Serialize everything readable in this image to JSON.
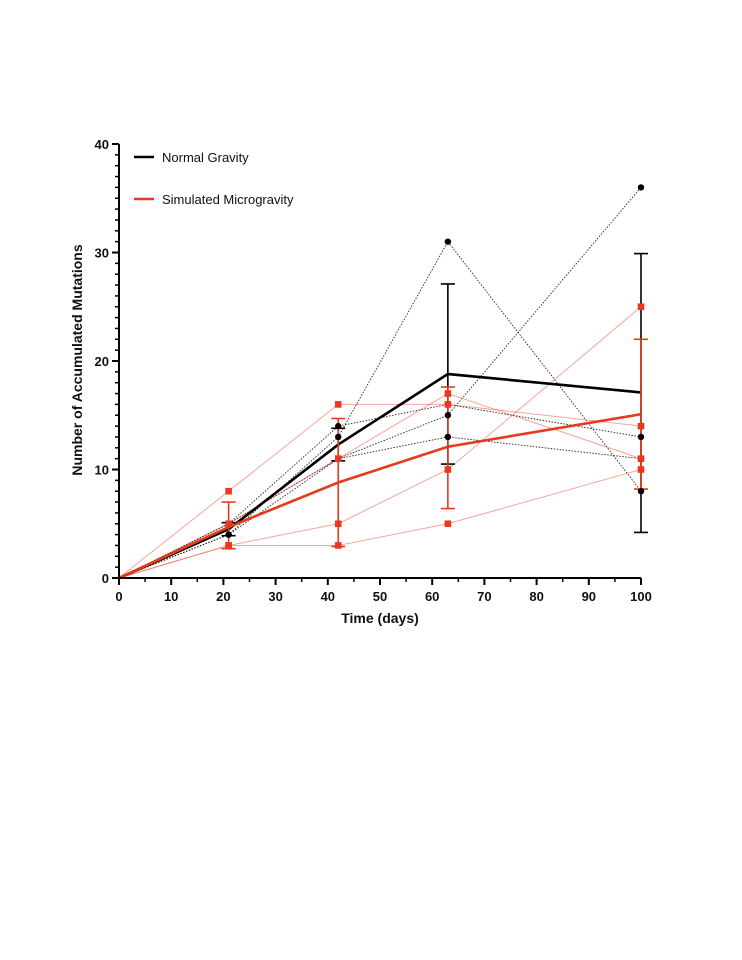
{
  "chart_data": {
    "type": "line",
    "title": "",
    "xlabel": "Time (days)",
    "ylabel": "Number of Accumulated Mutations",
    "xlim": [
      0,
      100
    ],
    "ylim": [
      0,
      40
    ],
    "x_ticks": [
      0,
      10,
      20,
      30,
      40,
      50,
      60,
      70,
      80,
      90,
      100
    ],
    "y_ticks": [
      0,
      10,
      20,
      30,
      40
    ],
    "x_tick_labels": [
      "0",
      "10",
      "20",
      "30",
      "40",
      "50",
      "60",
      "70",
      "80",
      "90",
      "100"
    ],
    "y_tick_labels": [
      "0",
      "10",
      "20",
      "30",
      "40"
    ],
    "legend": {
      "position": "top-left",
      "entries": [
        "Normal Gravity",
        "Simulated Microgravity"
      ]
    },
    "series": [
      {
        "name": "Normal Gravity",
        "color": "#000000",
        "marker": "circle",
        "x": [
          0,
          21,
          42,
          63,
          100
        ],
        "mean": [
          0,
          4.5,
          12.3,
          18.8,
          17.1
        ],
        "error_low": [
          0,
          3.9,
          10.8,
          10.5,
          4.2
        ],
        "error_high": [
          0,
          5.1,
          13.8,
          27.1,
          29.9
        ],
        "replicates": [
          [
            0,
            4,
            13,
            31,
            8
          ],
          [
            0,
            5,
            14,
            16,
            13
          ],
          [
            0,
            4,
            11,
            15,
            36
          ],
          [
            0,
            5,
            11,
            13,
            11
          ]
        ]
      },
      {
        "name": "Simulated Microgravity",
        "color": "#e8391d",
        "marker": "square",
        "x": [
          0,
          21,
          42,
          63,
          100
        ],
        "mean": [
          0,
          4.7,
          8.8,
          12.1,
          15.1
        ],
        "error_low": [
          0,
          2.7,
          2.9,
          6.4,
          8.2
        ],
        "error_high": [
          0,
          7.0,
          14.7,
          17.6,
          22.0
        ],
        "replicates": [
          [
            0,
            8,
            16,
            16,
            14
          ],
          [
            0,
            5,
            11,
            17,
            11
          ],
          [
            0,
            3,
            3,
            5,
            10
          ],
          [
            0,
            3,
            5,
            10,
            25
          ]
        ]
      }
    ]
  }
}
